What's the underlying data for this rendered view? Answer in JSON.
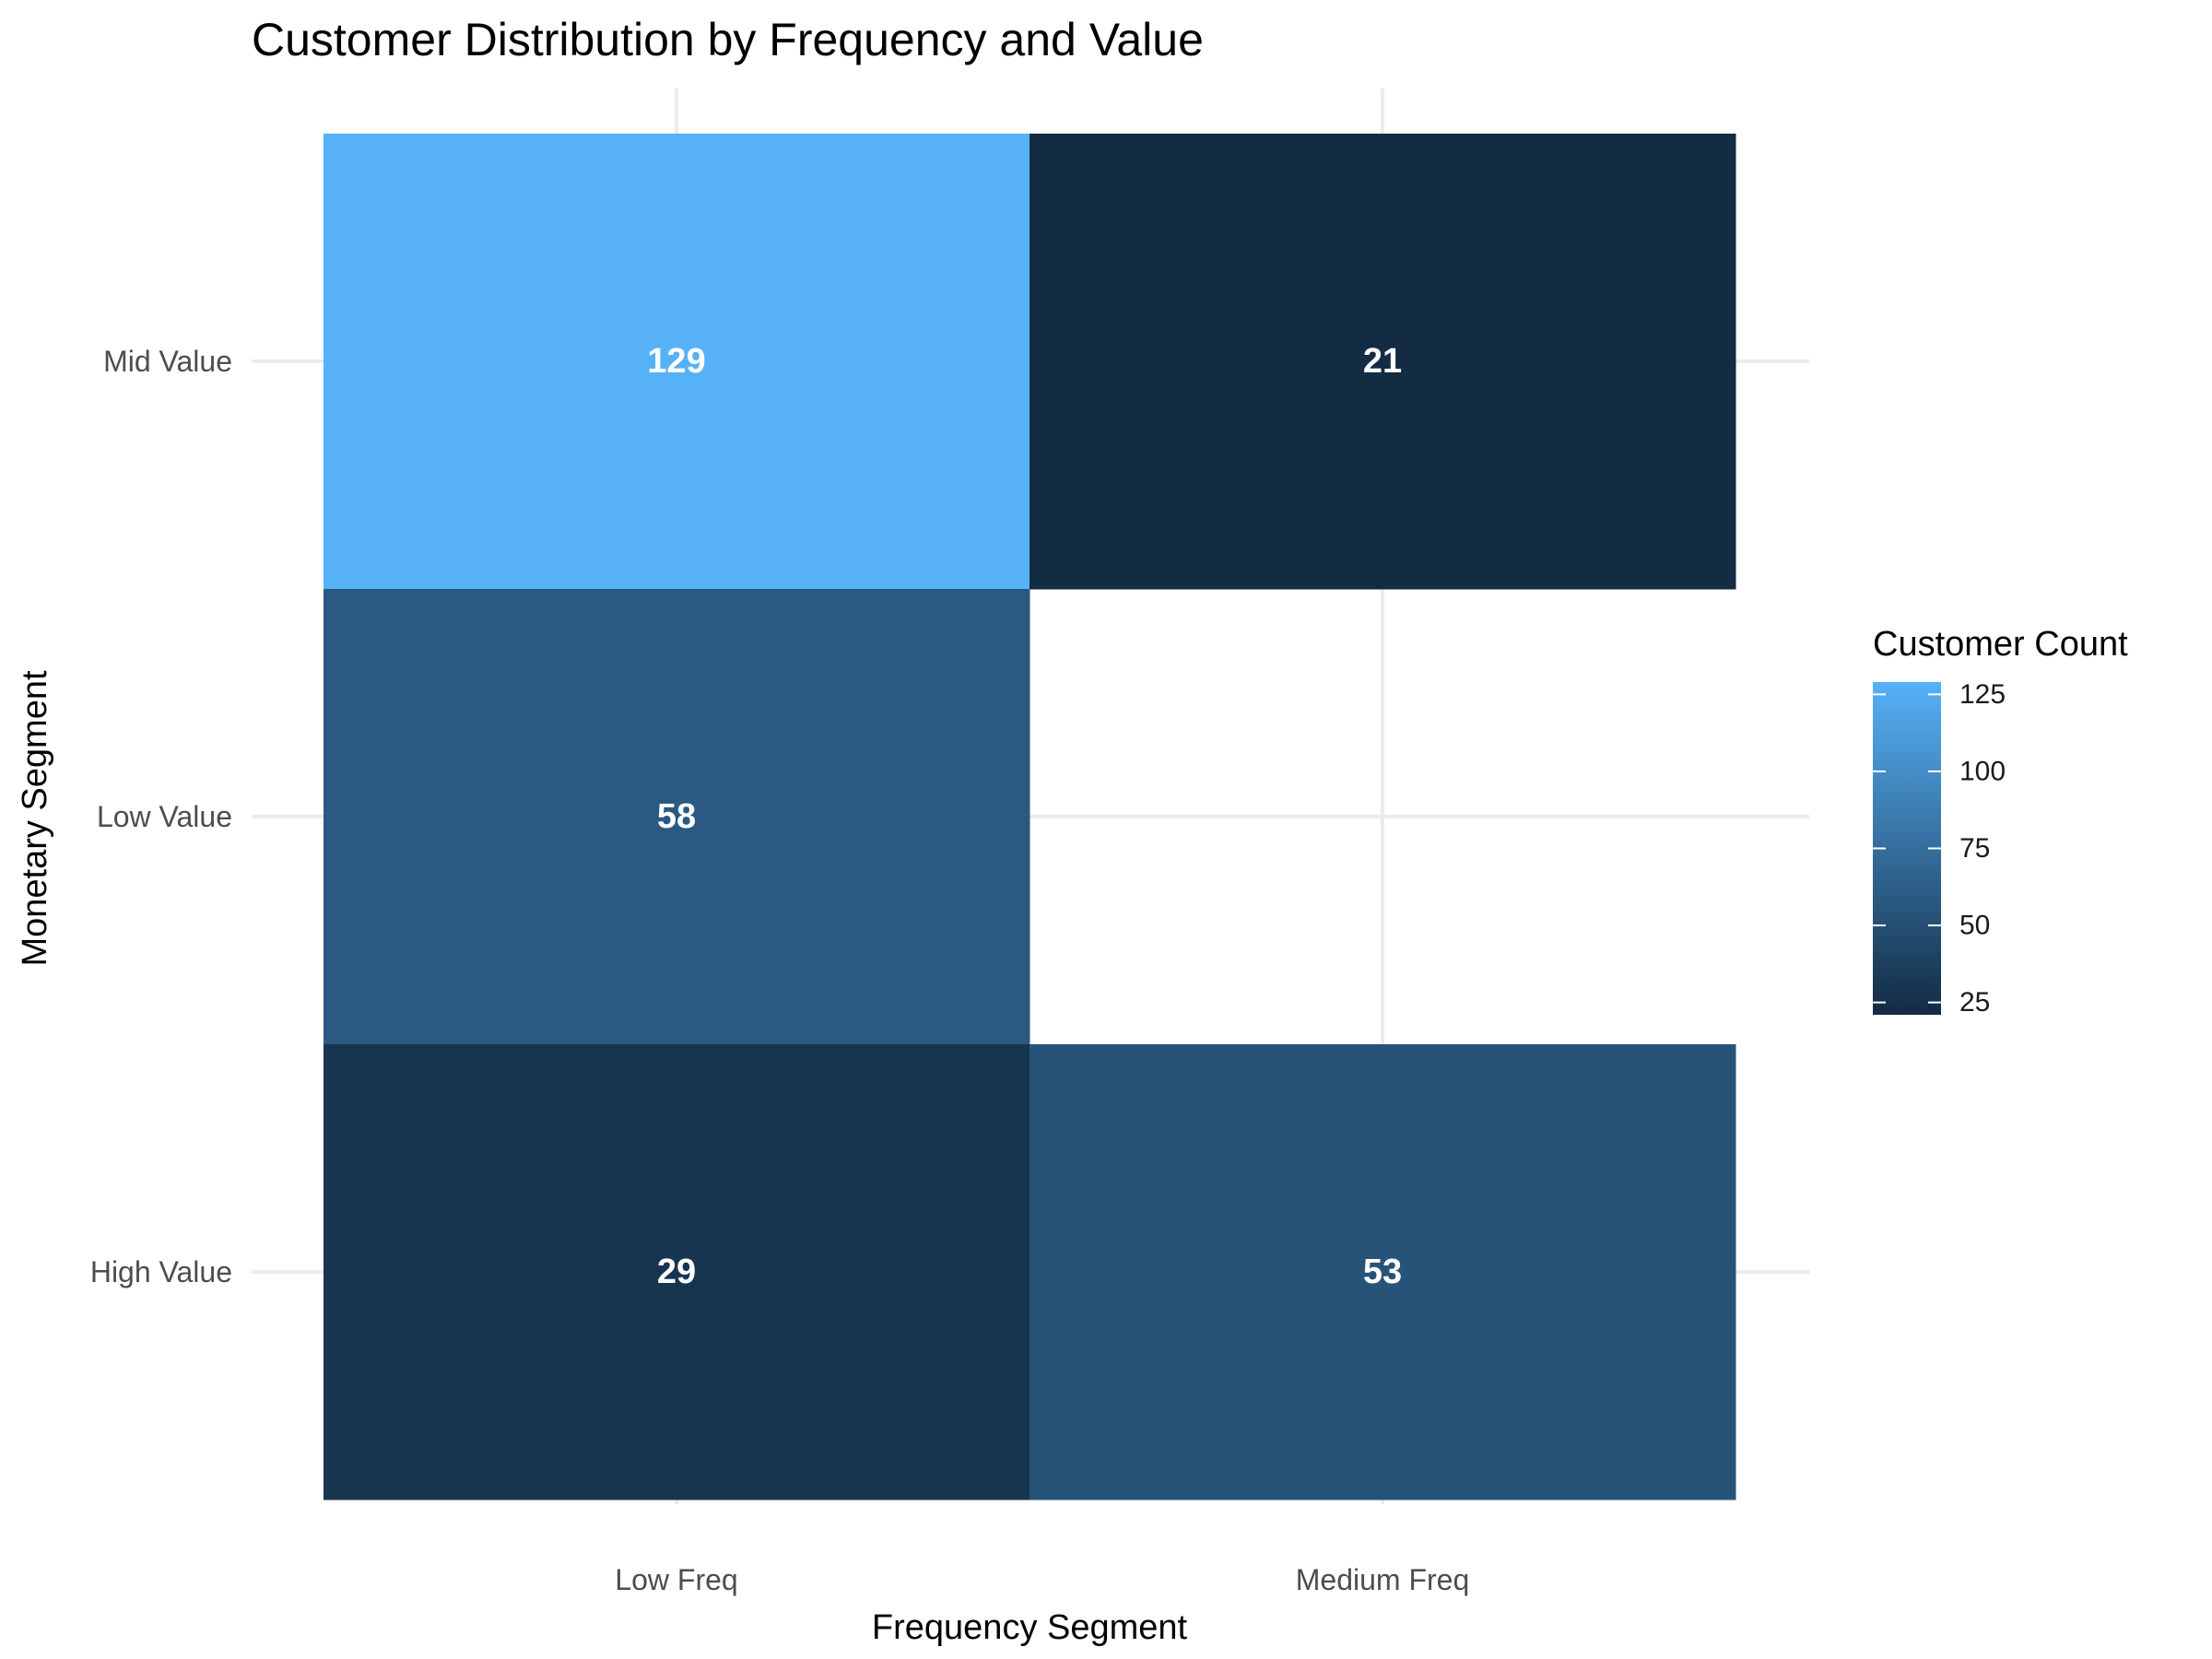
{
  "chart_data": {
    "type": "heatmap",
    "title": "Customer Distribution by Frequency and Value",
    "xlabel": "Frequency Segment",
    "ylabel": "Monetary Segment",
    "x_categories": [
      "Low Freq",
      "Medium Freq"
    ],
    "y_categories": [
      "High Value",
      "Low Value",
      "Mid Value"
    ],
    "cells": [
      {
        "x": "Low Freq",
        "y": "Mid Value",
        "value": 129,
        "label": "129"
      },
      {
        "x": "Medium Freq",
        "y": "Mid Value",
        "value": 21,
        "label": "21"
      },
      {
        "x": "Low Freq",
        "y": "Low Value",
        "value": 58,
        "label": "58"
      },
      {
        "x": "Low Freq",
        "y": "High Value",
        "value": 29,
        "label": "29"
      },
      {
        "x": "Medium Freq",
        "y": "High Value",
        "value": 53,
        "label": "53"
      }
    ],
    "legend": {
      "title": "Customer Count",
      "position": "right",
      "breaks": [
        25,
        50,
        75,
        100,
        125
      ],
      "break_labels": [
        "25",
        "50",
        "75",
        "100",
        "125"
      ],
      "range": [
        21,
        129
      ]
    },
    "colors": {
      "low": "#132B43",
      "high": "#56B1F7",
      "grid": "#ebebeb",
      "cell_text": "#ffffff"
    },
    "grid": true
  }
}
